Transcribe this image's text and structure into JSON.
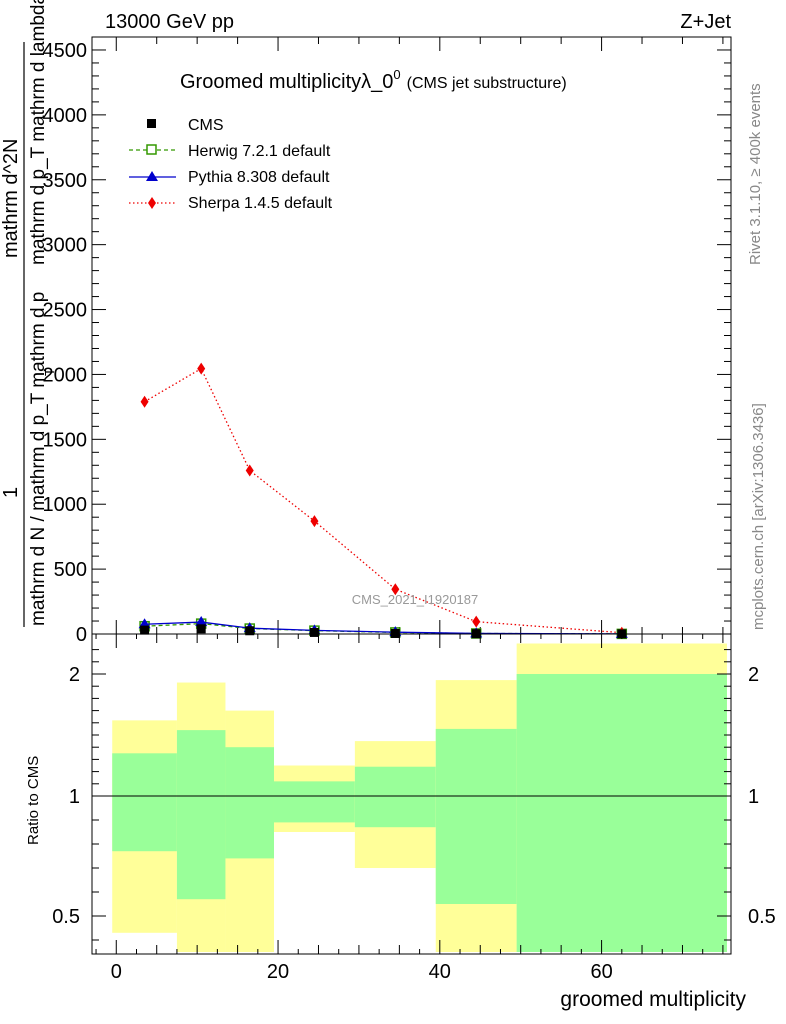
{
  "header": {
    "energy_label": "13000 GeV pp",
    "process_label": "Z+Jet"
  },
  "side_labels": {
    "rivet": "Rivet 3.1.10, ≥ 400k events",
    "mcplots": "mcplots.cern.ch [arXiv:1306.3436]"
  },
  "colors": {
    "cms": "#000000",
    "herwig": "#339900",
    "pythia": "#0000cc",
    "sherpa": "#ee0000",
    "band_yellow": "#ffff99",
    "band_green": "#99ff99"
  },
  "chart_data": [
    {
      "type": "line",
      "title_main": "Groomed multiplicityλ_0",
      "title_sup": "0",
      "title_note": "(CMS jet substructure)",
      "watermark": "CMS_2021_I1920187",
      "ylabel_numerator": "1",
      "ylabel_main": "mathrm d N / mathrm d p_T mathrm d p",
      "ylabel_sub": "T",
      "ylabel_right": "mathrm d^2N",
      "ylabel_right_sub": "mathrm d p_T mathrm d lambda",
      "ylim": [
        0,
        4600
      ],
      "yticks": [
        0,
        500,
        1000,
        1500,
        2000,
        2500,
        3000,
        3500,
        4000,
        4500
      ],
      "ytick_labels": [
        "0",
        "500",
        "1000",
        "1500",
        "2000",
        "2500",
        "3000",
        "3500",
        "4000",
        "4500"
      ],
      "xlim": [
        -3,
        76
      ],
      "series": [
        {
          "name": "CMS",
          "marker": "square-filled",
          "line": "none",
          "x": [
            3.5,
            10.5,
            16.5,
            24.5,
            34.5,
            44.5,
            62.5
          ],
          "values": [
            30,
            40,
            25,
            12,
            4,
            2,
            1
          ]
        },
        {
          "name": "Herwig 7.2.1 default",
          "marker": "square-open",
          "line": "dashed",
          "x": [
            3.5,
            10.5,
            16.5,
            24.5,
            34.5,
            44.5,
            62.5
          ],
          "values": [
            60,
            80,
            42,
            26,
            12,
            4,
            1
          ]
        },
        {
          "name": "Pythia 8.308 default",
          "marker": "triangle",
          "line": "solid",
          "x": [
            3.5,
            10.5,
            16.5,
            24.5,
            34.5,
            44.5,
            62.5
          ],
          "values": [
            75,
            92,
            45,
            28,
            14,
            5,
            1
          ]
        },
        {
          "name": "Sherpa 1.4.5 default",
          "marker": "diamond",
          "line": "dotted",
          "x": [
            3.5,
            10.5,
            16.5,
            24.5,
            34.5,
            44.5,
            62.5
          ],
          "values": [
            1790,
            2045,
            1260,
            870,
            345,
            95,
            10
          ]
        }
      ]
    },
    {
      "type": "area",
      "ylabel": "Ratio to CMS",
      "xlabel": "groomed multiplicity",
      "ylim": [
        0.35,
        2.25
      ],
      "yticks": [
        0.5,
        1,
        2
      ],
      "ytick_labels": [
        "0.5",
        "1",
        "2"
      ],
      "xlim": [
        -3,
        76
      ],
      "xticks": [
        0,
        20,
        40,
        60
      ],
      "xtick_labels": [
        "0",
        "20",
        "40",
        "60"
      ],
      "reference_line": 1,
      "bins": [
        {
          "lo": -0.5,
          "hi": 7.5,
          "yellow": [
            0.43,
            1.62
          ],
          "green": [
            0.77,
            1.35
          ]
        },
        {
          "lo": 7.5,
          "hi": 13.5,
          "yellow": [
            0.35,
            1.93
          ],
          "green": [
            0.57,
            1.54
          ]
        },
        {
          "lo": 13.5,
          "hi": 19.5,
          "yellow": [
            0.35,
            1.7
          ],
          "green": [
            0.74,
            1.4
          ]
        },
        {
          "lo": 19.5,
          "hi": 29.5,
          "yellow": [
            0.85,
            1.25
          ],
          "green": [
            0.89,
            1.12
          ]
        },
        {
          "lo": 29.5,
          "hi": 39.5,
          "yellow": [
            0.7,
            1.45
          ],
          "green": [
            0.87,
            1.24
          ]
        },
        {
          "lo": 39.5,
          "hi": 49.5,
          "yellow": [
            0.35,
            1.95
          ],
          "green": [
            0.55,
            1.55
          ]
        },
        {
          "lo": 49.5,
          "hi": 75.5,
          "yellow": [
            0.35,
            2.25
          ],
          "green": [
            0.35,
            2.0
          ]
        }
      ]
    }
  ]
}
